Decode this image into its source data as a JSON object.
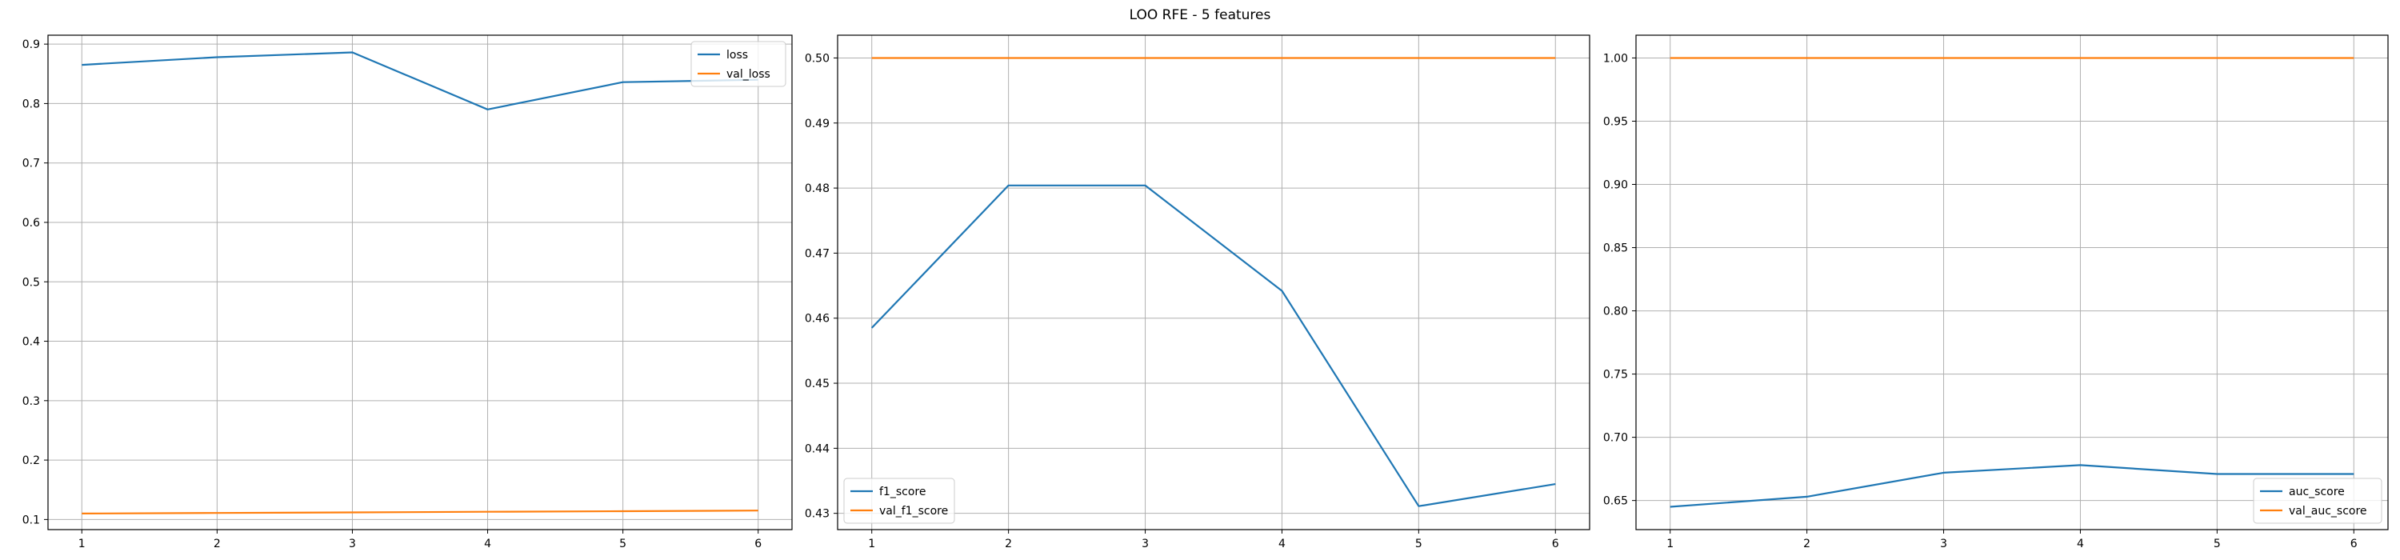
{
  "figure": {
    "title": "LOO RFE - 5 features"
  },
  "colors": {
    "series1": "#1f77b4",
    "series2": "#ff7f0e",
    "grid": "#b0b0b0",
    "axis": "#000000"
  },
  "chart_data": [
    {
      "type": "line",
      "x": [
        1,
        2,
        3,
        4,
        5,
        6
      ],
      "series": [
        {
          "name": "loss",
          "values": [
            0.865,
            0.878,
            0.886,
            0.79,
            0.836,
            0.84
          ]
        },
        {
          "name": "val_loss",
          "values": [
            0.11,
            0.111,
            0.112,
            0.113,
            0.114,
            0.115
          ]
        }
      ],
      "xlim": [
        0.75,
        6.25
      ],
      "ylim": [
        0.083,
        0.915
      ],
      "xticks": [
        1,
        2,
        3,
        4,
        5,
        6
      ],
      "yticks": [
        0.1,
        0.2,
        0.3,
        0.4,
        0.5,
        0.6,
        0.7,
        0.8,
        0.9
      ],
      "grid": true,
      "legend": "upper right"
    },
    {
      "type": "line",
      "x": [
        1,
        2,
        3,
        4,
        5,
        6
      ],
      "series": [
        {
          "name": "f1_score",
          "values": [
            0.4585,
            0.4804,
            0.4804,
            0.4642,
            0.4311,
            0.4345
          ]
        },
        {
          "name": "val_f1_score",
          "values": [
            0.5,
            0.5,
            0.5,
            0.5,
            0.5,
            0.5
          ]
        }
      ],
      "xlim": [
        0.75,
        6.25
      ],
      "ylim": [
        0.4275,
        0.5035
      ],
      "xticks": [
        1,
        2,
        3,
        4,
        5,
        6
      ],
      "yticks": [
        0.43,
        0.44,
        0.45,
        0.46,
        0.47,
        0.48,
        0.49,
        0.5
      ],
      "grid": true,
      "legend": "lower left"
    },
    {
      "type": "line",
      "x": [
        1,
        2,
        3,
        4,
        5,
        6
      ],
      "series": [
        {
          "name": "auc_score",
          "values": [
            0.645,
            0.653,
            0.672,
            0.678,
            0.671,
            0.671
          ]
        },
        {
          "name": "val_auc_score",
          "values": [
            1.0,
            1.0,
            1.0,
            1.0,
            1.0,
            1.0
          ]
        }
      ],
      "xlim": [
        0.75,
        6.25
      ],
      "ylim": [
        0.627,
        1.018
      ],
      "xticks": [
        1,
        2,
        3,
        4,
        5,
        6
      ],
      "yticks": [
        0.65,
        0.7,
        0.75,
        0.8,
        0.85,
        0.9,
        0.95,
        1.0
      ],
      "grid": true,
      "legend": "lower right"
    }
  ]
}
